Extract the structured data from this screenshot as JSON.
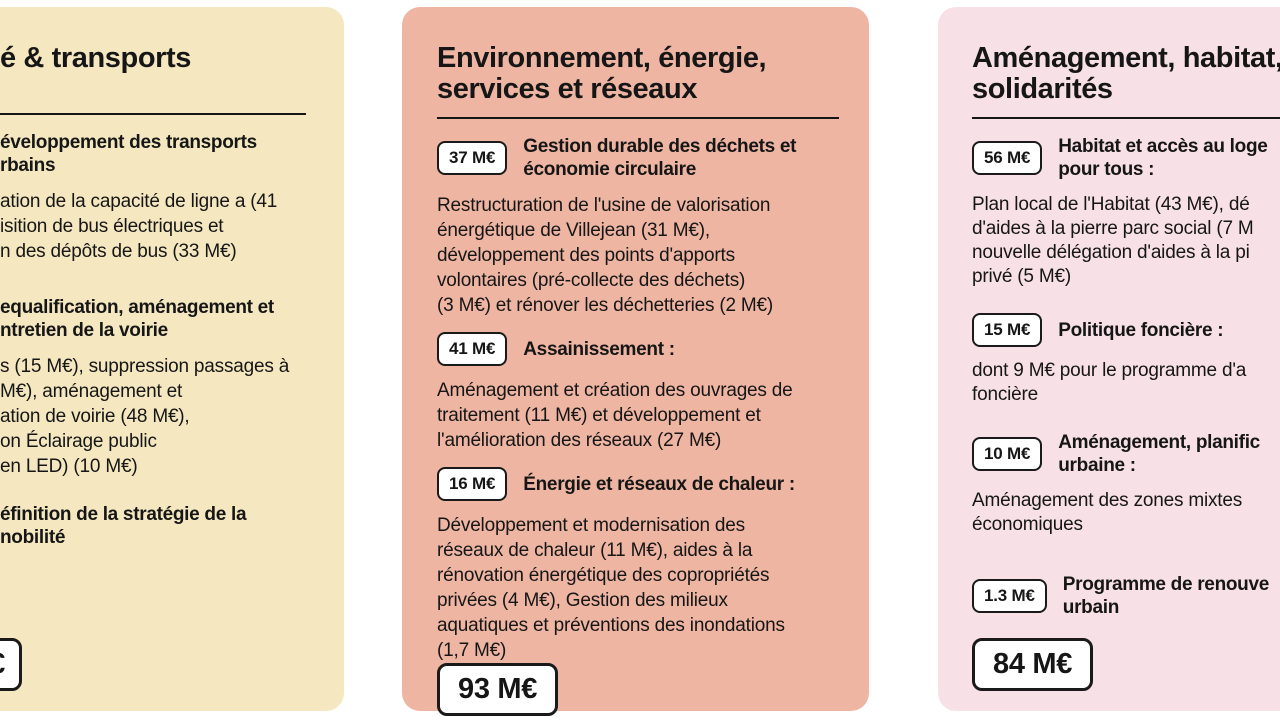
{
  "page": {
    "background": "#FFFFFF",
    "text_color": "#161616"
  },
  "cards": [
    {
      "name": "mobilite-transports",
      "bg": "#F5E8C0",
      "title": "é & transports",
      "sections": [
        {
          "heading": "éveloppement des transports\nrbains",
          "body": "ation de la capacité de ligne a (41\nisition de bus électriques et\nn des dépôts de bus (33 M€)"
        },
        {
          "heading": "equalification, aménagement et\nntretien de la voirie",
          "body": "s (15 M€), suppression passages à\nM€), aménagement et\nation de voirie (48 M€),\non Éclairage public\nen LED) (10 M€)"
        },
        {
          "heading": "éfinition de la stratégie de la\nnobilité",
          "body": ""
        }
      ],
      "total": "€"
    },
    {
      "name": "environnement-energie-services-reseaux",
      "bg": "#EEB5A3",
      "title": "Environnement, énergie,\nservices et réseaux",
      "sections": [
        {
          "badge": "37 M€",
          "heading": "Gestion durable des déchets et\néconomie circulaire",
          "body": "Restructuration de l'usine de valorisation\nénergétique de Villejean (31 M€),\ndéveloppement des points d'apports\nvolontaires (pré-collecte des déchets)\n(3 M€) et rénover les déchetteries (2 M€)"
        },
        {
          "badge": "41 M€",
          "heading": "Assainissement :",
          "body": "Aménagement et création des ouvrages de\ntraitement (11 M€) et développement et\nl'amélioration des réseaux (27 M€)"
        },
        {
          "badge": "16 M€",
          "heading": "Énergie et réseaux de chaleur :",
          "body": "Développement et modernisation des\nréseaux de chaleur (11 M€), aides à la\nrénovation énergétique des copropriétés\nprivées (4 M€), Gestion des milieux\naquatiques et préventions des inondations\n(1,7 M€)"
        }
      ],
      "total": "93 M€"
    },
    {
      "name": "amenagement-habitat-solidarites",
      "bg": "#F7E0E6",
      "title": "Aménagement, habitat,\nsolidarités",
      "sections": [
        {
          "badge": "56 M€",
          "heading": "Habitat et accès au loge\npour tous :",
          "body": "Plan local de l'Habitat (43 M€), dé\nd'aides à la pierre parc social (7 M\nnouvelle délégation d'aides à la pi\nprivé (5 M€)"
        },
        {
          "badge": "15 M€",
          "heading": "Politique foncière :",
          "body": "dont 9 M€ pour le programme d'a\nfoncière"
        },
        {
          "badge": "10 M€",
          "heading": "Aménagement, planific\nurbaine :",
          "body": "Aménagement des zones mixtes\néconomiques"
        },
        {
          "badge": "1.3 M€",
          "heading": "Programme de renouve\nurbain",
          "body": ""
        }
      ],
      "total": "84 M€"
    }
  ]
}
